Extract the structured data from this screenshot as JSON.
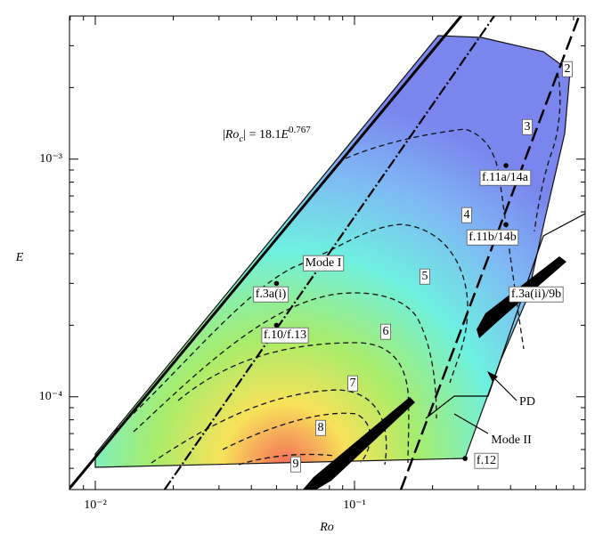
{
  "chart_data": {
    "type": "scatter",
    "xlabel": "Ro",
    "ylabel": "E",
    "xscale": "log",
    "yscale": "log",
    "xlim": [
      0.00795,
      0.776
    ],
    "ylim": [
      4.07e-05,
      0.004
    ],
    "xticks": [
      {
        "value": 0.01,
        "label": "10⁻²"
      },
      {
        "value": 0.1,
        "label": "10⁻¹"
      }
    ],
    "yticks": [
      {
        "value": 0.0001,
        "label": "10⁻⁴"
      },
      {
        "value": 0.001,
        "label": "10⁻³"
      }
    ],
    "points": {
      "labels": [
        "f.3a(i)",
        "f.10/f.13",
        "f.11a/14a",
        "f.11b/14b",
        "f.3a(ii)/9b",
        "f.12"
      ],
      "x": [
        0.05,
        0.05,
        0.384,
        0.384,
        0.486,
        0.267
      ],
      "y": [
        0.0003,
        0.0002,
        0.00094,
        0.00053,
        0.0003,
        5.5e-05
      ]
    },
    "lines": [
      {
        "style": "solid",
        "x": [
          0.008,
          0.258
        ],
        "y": [
          4.15e-05,
          0.004
        ]
      },
      {
        "style": "dashdot",
        "x": [
          0.0185,
          0.346
        ],
        "y": [
          4.07e-05,
          0.004
        ]
      },
      {
        "style": "dashed",
        "x": [
          0.151,
          0.735
        ],
        "y": [
          4.07e-05,
          0.004
        ]
      }
    ],
    "contour_levels": [
      2,
      3,
      4,
      5,
      6,
      7,
      8,
      9
    ],
    "annotations": [
      "Mode I",
      "Mode II",
      "PD"
    ],
    "formula": [
      "|",
      "Ro",
      "c",
      "| = 18.1",
      "E",
      "0.767"
    ]
  }
}
